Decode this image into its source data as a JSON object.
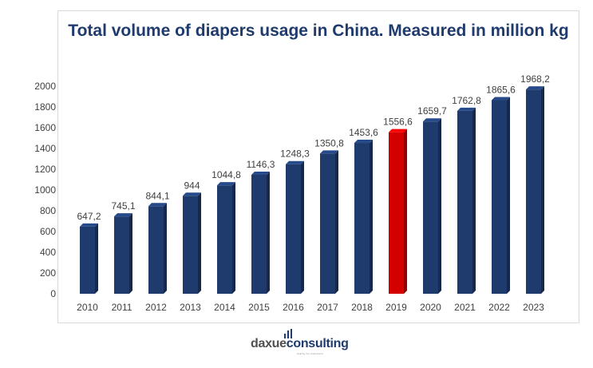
{
  "chart_data": {
    "type": "bar",
    "title": "Total volume of diapers usage in China. Measured in million kg",
    "categories": [
      "2010",
      "2011",
      "2012",
      "2013",
      "2014",
      "2015",
      "2016",
      "2017",
      "2018",
      "2019",
      "2020",
      "2021",
      "2022",
      "2023"
    ],
    "values": [
      647.2,
      745.1,
      844.1,
      944,
      1044.8,
      1146.3,
      1248.3,
      1350.8,
      1453.6,
      1556.6,
      1659.7,
      1762.8,
      1865.6,
      1968.2
    ],
    "data_labels": [
      "647,2",
      "745,1",
      "844,1",
      "944",
      "1044,8",
      "1146,3",
      "1248,3",
      "1350,8",
      "1453,6",
      "1556,6",
      "1659,7",
      "1762,8",
      "1865,6",
      "1968,2"
    ],
    "highlight_category": "2019",
    "yticks": [
      0,
      200,
      400,
      600,
      800,
      1000,
      1200,
      1400,
      1600,
      1800,
      2000
    ],
    "ylim": [
      0,
      2000
    ],
    "grid": false,
    "colors": {
      "bar": "#1f3b6e",
      "highlight": "#d40000"
    }
  },
  "logo": {
    "part1": "daxue",
    "part2": "consulting",
    "tagline": "Helping You Understand"
  }
}
